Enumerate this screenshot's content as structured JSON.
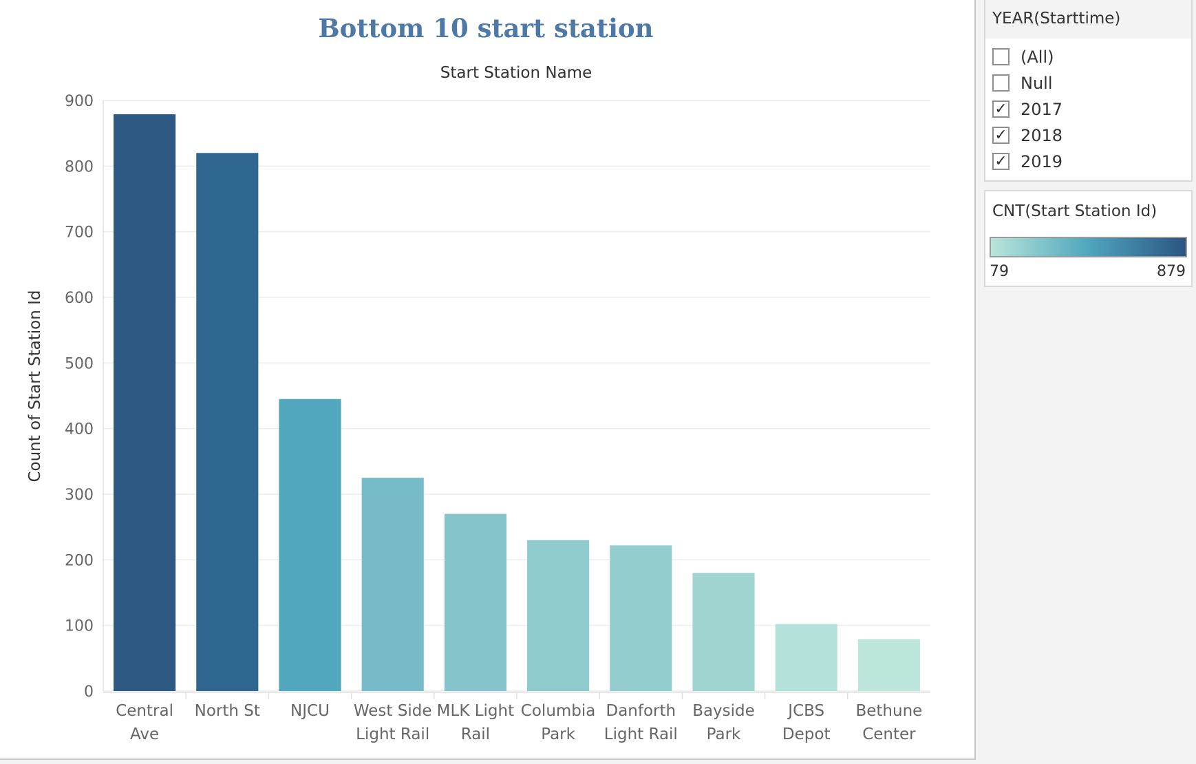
{
  "year_filter": {
    "title": "YEAR(Starttime)",
    "items": [
      {
        "label": "(All)",
        "checked": false
      },
      {
        "label": "Null",
        "checked": false
      },
      {
        "label": "2017",
        "checked": true
      },
      {
        "label": "2018",
        "checked": true
      },
      {
        "label": "2019",
        "checked": true
      }
    ]
  },
  "color_legend": {
    "title": "CNT(Start Station Id)",
    "min_label": "79",
    "max_label": "879",
    "color_low": "#b9e5da",
    "color_mid": "#4fa6bd",
    "color_high": "#2b5580"
  },
  "chart_data": {
    "type": "bar",
    "title": "Bottom 10 start station",
    "title_color": "#4e79a7",
    "xlabel": "Start Station Name",
    "ylabel": "Count of Start Station Id",
    "ylim": [
      0,
      900
    ],
    "yticks": [
      0,
      100,
      200,
      300,
      400,
      500,
      600,
      700,
      800,
      900
    ],
    "grid": true,
    "categories": [
      [
        "Central",
        "Ave"
      ],
      [
        "North St"
      ],
      [
        "NJCU"
      ],
      [
        "West Side",
        "Light Rail"
      ],
      [
        "MLK Light",
        "Rail"
      ],
      [
        "Columbia",
        "Park"
      ],
      [
        "Danforth",
        "Light Rail"
      ],
      [
        "Bayside",
        "Park"
      ],
      [
        "JCBS",
        "Depot"
      ],
      [
        "Bethune",
        "Center"
      ]
    ],
    "values": [
      879,
      820,
      445,
      325,
      270,
      230,
      222,
      180,
      102,
      79
    ],
    "colors": [
      "#2d5983",
      "#2f6690",
      "#51a7bd",
      "#76bbc7",
      "#84c4ca",
      "#8fcacd",
      "#93cdce",
      "#a0d4d1",
      "#b4e1d9",
      "#bce5dc"
    ]
  }
}
